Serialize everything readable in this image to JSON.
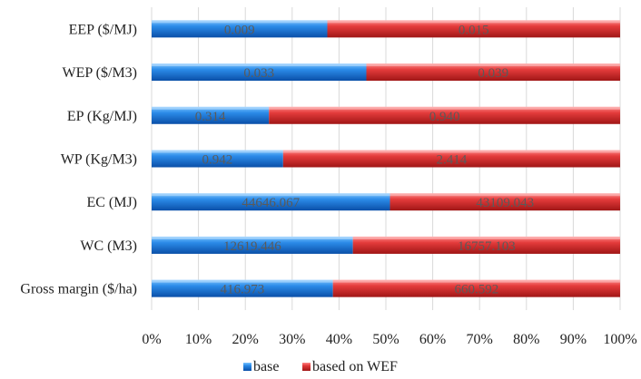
{
  "chart_data": {
    "type": "bar",
    "orientation": "horizontal",
    "stacked": "percent",
    "categories": [
      "EEP ($/MJ)",
      "WEP ($/M3)",
      "EP (Kg/MJ)",
      "WP (Kg/M3)",
      "EC (MJ)",
      "WC (M3)",
      "Gross margin ($/ha)"
    ],
    "series": [
      {
        "name": "base",
        "color": "#1f77d0",
        "values": [
          0.009,
          0.033,
          0.314,
          0.942,
          44646.067,
          12619.446,
          416.973
        ],
        "labels": [
          "0.009",
          "0.033",
          "0.314",
          "0.942",
          "44646.067",
          "12619.446",
          "416.973"
        ]
      },
      {
        "name": "based on WEF",
        "color": "#e03a3a",
        "values": [
          0.015,
          0.039,
          0.94,
          2.414,
          43109.043,
          16757.103,
          660.592
        ],
        "labels": [
          "0.015",
          "0.039",
          "0.940",
          "2.414",
          "43109.043",
          "16757.103",
          "660.592"
        ]
      }
    ],
    "x_ticks": [
      "0%",
      "10%",
      "20%",
      "30%",
      "40%",
      "50%",
      "60%",
      "70%",
      "80%",
      "90%",
      "100%"
    ],
    "xlim": [
      0,
      100
    ],
    "grid": true,
    "legend": "bottom-center",
    "title": "",
    "xlabel": "",
    "ylabel": ""
  }
}
